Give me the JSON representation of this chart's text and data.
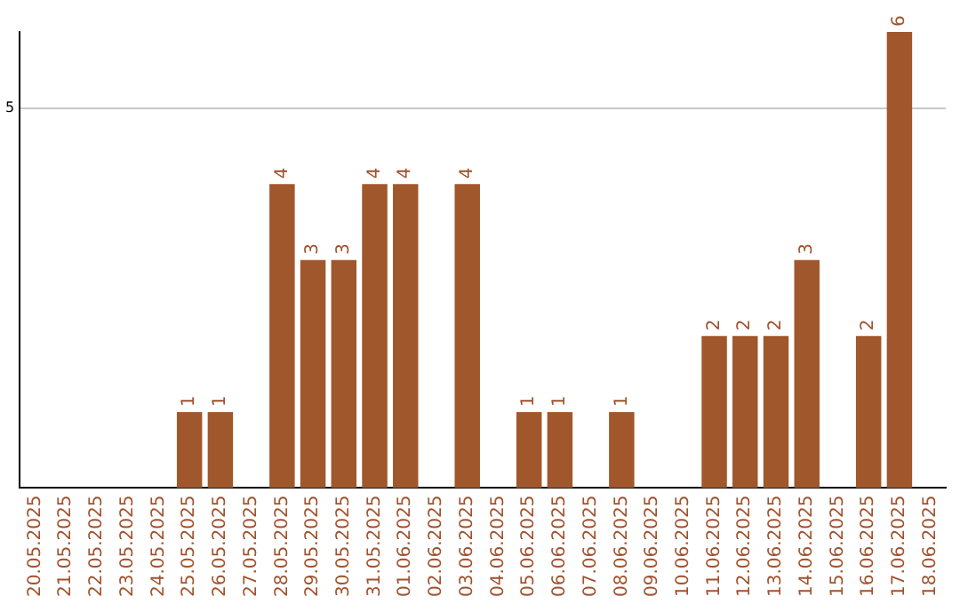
{
  "chart_data": {
    "type": "bar",
    "categories": [
      "20.05.2025",
      "21.05.2025",
      "22.05.2025",
      "23.05.2025",
      "24.05.2025",
      "25.05.2025",
      "26.05.2025",
      "27.05.2025",
      "28.05.2025",
      "29.05.2025",
      "30.05.2025",
      "31.05.2025",
      "01.06.2025",
      "02.06.2025",
      "03.06.2025",
      "04.06.2025",
      "05.06.2025",
      "06.06.2025",
      "07.06.2025",
      "08.06.2025",
      "09.06.2025",
      "10.06.2025",
      "11.06.2025",
      "12.06.2025",
      "13.06.2025",
      "14.06.2025",
      "15.06.2025",
      "16.06.2025",
      "17.06.2025",
      "18.06.2025"
    ],
    "values": [
      null,
      null,
      null,
      null,
      null,
      1,
      1,
      null,
      4,
      3,
      3,
      4,
      4,
      null,
      4,
      null,
      1,
      1,
      null,
      1,
      null,
      null,
      2,
      2,
      2,
      3,
      null,
      2,
      6,
      null
    ],
    "color": "#a0572b",
    "ylim": [
      0,
      6
    ],
    "yticks": [
      5
    ],
    "grid": "y",
    "legend": false,
    "data_labels": true
  }
}
